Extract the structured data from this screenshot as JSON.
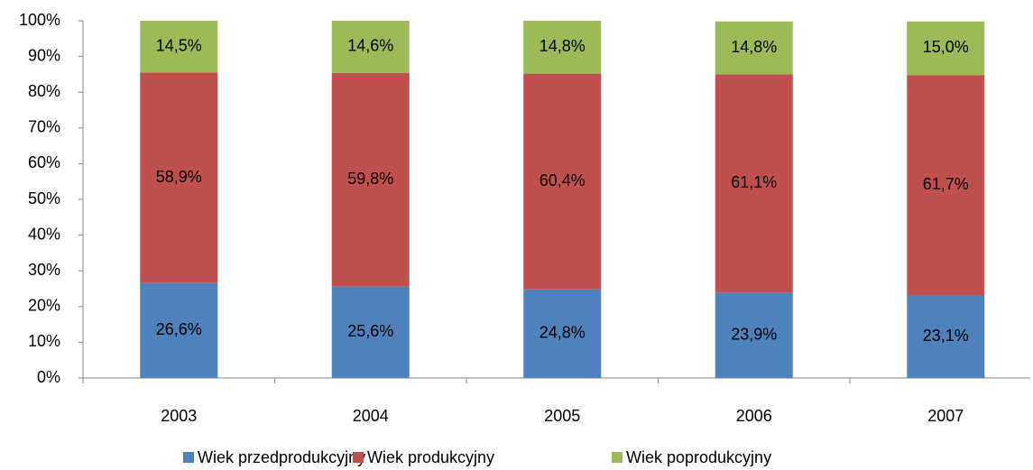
{
  "chart_data": {
    "type": "stacked_bar",
    "categories": [
      "2003",
      "2004",
      "2005",
      "2006",
      "2007"
    ],
    "series": [
      {
        "name": "Wiek przedprodukcyjny",
        "color": "#4f81bd",
        "values": [
          26.6,
          25.6,
          24.8,
          23.9,
          23.1
        ],
        "value_labels": [
          "26,6%",
          "25,6%",
          "24,8%",
          "23,9%",
          "23,1%"
        ]
      },
      {
        "name": "Wiek produkcyjny",
        "color": "#c0504d",
        "values": [
          58.9,
          59.8,
          60.4,
          61.1,
          61.7
        ],
        "value_labels": [
          "58,9%",
          "59,8%",
          "60,4%",
          "61,1%",
          "61,7%"
        ]
      },
      {
        "name": "Wiek poprodukcyjny",
        "color": "#9bbb59",
        "values": [
          14.5,
          14.6,
          14.8,
          14.8,
          15.0
        ],
        "value_labels": [
          "14,5%",
          "14,6%",
          "14,8%",
          "14,8%",
          "15,0%"
        ]
      }
    ],
    "ylim": [
      0,
      100
    ],
    "yticks": [
      {
        "value": 0,
        "label": "0%"
      },
      {
        "value": 10,
        "label": "10%"
      },
      {
        "value": 20,
        "label": "20%"
      },
      {
        "value": 30,
        "label": "30%"
      },
      {
        "value": 40,
        "label": "40%"
      },
      {
        "value": 50,
        "label": "50%"
      },
      {
        "value": 60,
        "label": "60%"
      },
      {
        "value": 70,
        "label": "70%"
      },
      {
        "value": 80,
        "label": "80%"
      },
      {
        "value": 90,
        "label": "90%"
      },
      {
        "value": 100,
        "label": "100%"
      }
    ],
    "grid": false,
    "legend": "bottom"
  }
}
